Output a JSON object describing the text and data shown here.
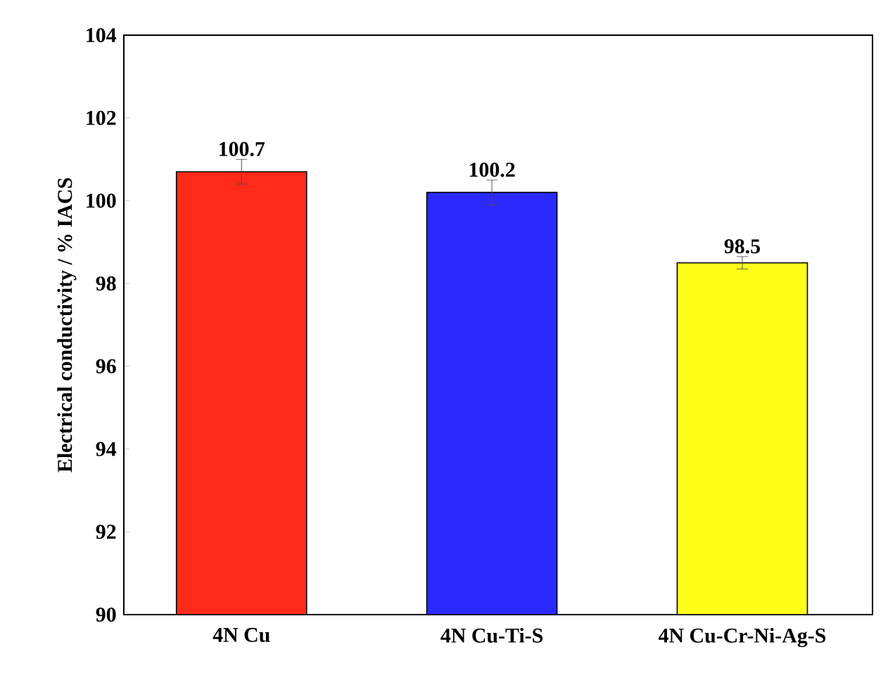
{
  "chart_data": {
    "type": "bar",
    "ylabel": "Electrical conductivity / % IACS",
    "categories": [
      "4N Cu",
      "4N Cu-Ti-S",
      "4N Cu-Cr-Ni-Ag-S"
    ],
    "values": [
      100.7,
      100.2,
      98.5
    ],
    "errors": [
      0.3,
      0.3,
      0.15
    ],
    "colors": [
      "#ff2a1a",
      "#2a2aff",
      "#ffff1a"
    ],
    "value_labels": [
      "100.7",
      "100.2",
      "98.5"
    ],
    "ylim": [
      90,
      104
    ],
    "yticks": [
      90,
      92,
      94,
      96,
      98,
      100,
      102,
      104
    ],
    "grid": false
  }
}
